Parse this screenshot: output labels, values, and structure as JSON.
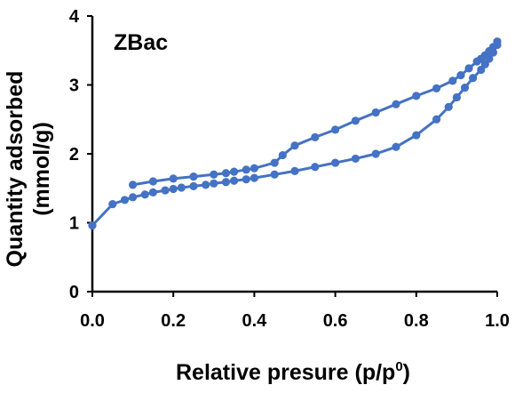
{
  "chart_data": {
    "type": "line",
    "title": "",
    "panel_label": "ZBac",
    "xlabel": "Relative presure (p/p",
    "xlabel_superscript": "0",
    "xlabel_close": ")",
    "ylabel_line1": "Quantity adsorbed",
    "ylabel_line2": "(mmol/g)",
    "xlim": [
      0.0,
      1.0
    ],
    "ylim": [
      0,
      4
    ],
    "xticks": [
      "0.0",
      "0.2",
      "0.4",
      "0.6",
      "0.8",
      "1.0"
    ],
    "yticks": [
      "0",
      "1",
      "2",
      "3",
      "4"
    ],
    "grid": false,
    "series_color": "#4472C4",
    "series": [
      {
        "x": [
          0.0,
          0.05,
          0.08,
          0.1,
          0.13,
          0.15,
          0.18,
          0.2,
          0.22,
          0.25,
          0.28,
          0.3,
          0.33,
          0.35,
          0.38,
          0.4,
          0.45,
          0.5,
          0.55,
          0.6,
          0.65,
          0.7,
          0.75,
          0.8,
          0.85,
          0.88,
          0.9,
          0.92,
          0.94,
          0.96,
          0.97,
          0.98,
          0.99,
          1.0
        ],
        "y": [
          0.96,
          1.27,
          1.33,
          1.37,
          1.41,
          1.44,
          1.47,
          1.49,
          1.51,
          1.53,
          1.55,
          1.57,
          1.59,
          1.61,
          1.63,
          1.65,
          1.7,
          1.75,
          1.81,
          1.87,
          1.93,
          2.0,
          2.1,
          2.27,
          2.5,
          2.68,
          2.82,
          2.96,
          3.1,
          3.22,
          3.3,
          3.38,
          3.47,
          3.58
        ]
      },
      {
        "x": [
          1.0,
          0.99,
          0.98,
          0.97,
          0.96,
          0.95,
          0.93,
          0.91,
          0.89,
          0.85,
          0.8,
          0.75,
          0.7,
          0.65,
          0.6,
          0.55,
          0.5,
          0.47,
          0.45,
          0.4,
          0.38,
          0.35,
          0.33,
          0.3,
          0.25,
          0.2,
          0.15,
          0.1
        ],
        "y": [
          3.63,
          3.55,
          3.49,
          3.43,
          3.38,
          3.34,
          3.24,
          3.14,
          3.06,
          2.95,
          2.84,
          2.72,
          2.6,
          2.48,
          2.35,
          2.24,
          2.12,
          1.98,
          1.87,
          1.79,
          1.77,
          1.74,
          1.72,
          1.7,
          1.67,
          1.64,
          1.6,
          1.55
        ]
      }
    ]
  }
}
